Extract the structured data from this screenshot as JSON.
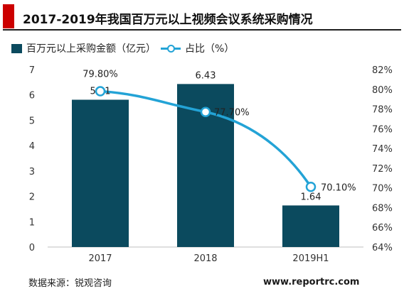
{
  "header": {
    "title": "2017-2019年我国百万元以上视频会议系统采购情况"
  },
  "legend": {
    "bar_label": "百万元以上采购金额（亿元）",
    "line_label": "占比（%）"
  },
  "footer": {
    "source": "数据来源：锐观咨询",
    "site": "www.reportrc.com"
  },
  "colors": {
    "bar": "#0b4a5e",
    "line": "#23a3d6",
    "title_accent": "#cc0000"
  },
  "chart_data": {
    "type": "bar",
    "categories": [
      "2017",
      "2018",
      "2019H1"
    ],
    "series": [
      {
        "name": "百万元以上采购金额（亿元）",
        "type": "bar",
        "axis": "left",
        "values": [
          5.81,
          6.43,
          1.64
        ],
        "labels": [
          "5.81",
          "6.43",
          "1.64"
        ]
      },
      {
        "name": "占比（%）",
        "type": "line",
        "axis": "right",
        "values": [
          79.8,
          77.7,
          70.1
        ],
        "labels": [
          "79.80%",
          "77.70%",
          "70.10%"
        ]
      }
    ],
    "y_left": {
      "min": 0,
      "max": 7,
      "ticks": [
        "0",
        "1",
        "2",
        "3",
        "4",
        "5",
        "6",
        "7"
      ]
    },
    "y_right": {
      "min": 64,
      "max": 82,
      "ticks": [
        "64%",
        "66%",
        "68%",
        "70%",
        "72%",
        "74%",
        "76%",
        "78%",
        "80%",
        "82%"
      ]
    },
    "title": "",
    "xlabel": "",
    "ylabel": "",
    "grid": false,
    "legend_position": "top-left"
  }
}
